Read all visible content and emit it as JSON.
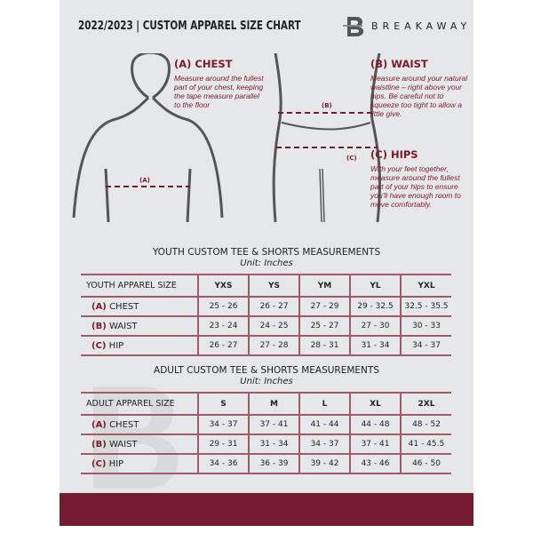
{
  "header": {
    "title": "2022/2023  |  CUSTOM APPAREL SIZE CHART",
    "brand": "BREAKAWAY",
    "logo_letter": "B"
  },
  "guide": {
    "chest": {
      "heading": "(A) CHEST",
      "text": "Measure around the fullest part of your chest, keeping the tape measure parallel to the floor",
      "marker": "(A)"
    },
    "waist": {
      "heading": "(B) WAIST",
      "text": "Measure around your natural waistline – right above your hips. Be careful not to squeeze too tight to allow a little give.",
      "marker": "(B)"
    },
    "hips": {
      "heading": "(C) HIPS",
      "text": "With your feet together, measure around the fullest part of your hips to ensure you'll have enough room to move comfortably.",
      "marker": "(C)"
    }
  },
  "youth": {
    "title": "YOUTH CUSTOM TEE & SHORTS MEASUREMENTS",
    "unit": "Unit: Inches",
    "header": [
      "YOUTH APPAREL SIZE",
      "YXS",
      "YS",
      "YM",
      "YL",
      "YXL"
    ],
    "rows": [
      {
        "code": "(A)",
        "name": "CHEST",
        "values": [
          "25 - 26",
          "26 - 27",
          "27 - 29",
          "29 - 32.5",
          "32.5 - 35.5"
        ]
      },
      {
        "code": "(B)",
        "name": "WAIST",
        "values": [
          "23 - 24",
          "24 - 25",
          "25 - 27",
          "27 - 30",
          "30 - 33"
        ]
      },
      {
        "code": "(C)",
        "name": "HIP",
        "values": [
          "26 - 27",
          "27 - 28",
          "28 - 31",
          "31 - 34",
          "34 - 37"
        ]
      }
    ]
  },
  "adult": {
    "title": "ADULT CUSTOM TEE & SHORTS MEASUREMENTS",
    "unit": "Unit: Inches",
    "header": [
      "ADULT APPAREL SIZE",
      "S",
      "M",
      "L",
      "XL",
      "2XL"
    ],
    "rows": [
      {
        "code": "(A)",
        "name": "CHEST",
        "values": [
          "34 - 37",
          "37 - 41",
          "41 - 44",
          "44 - 48",
          "48 - 52"
        ]
      },
      {
        "code": "(B)",
        "name": "WAIST",
        "values": [
          "29 - 31",
          "31 - 34",
          "34 - 37",
          "37 - 41",
          "41 - 45.5"
        ]
      },
      {
        "code": "(C)",
        "name": "HIP",
        "values": [
          "34 - 36",
          "36 - 39",
          "39 - 42",
          "43 - 46",
          "46 - 50"
        ]
      }
    ]
  },
  "colors": {
    "accent": "#741b32",
    "panel": "#e6e7e9"
  }
}
